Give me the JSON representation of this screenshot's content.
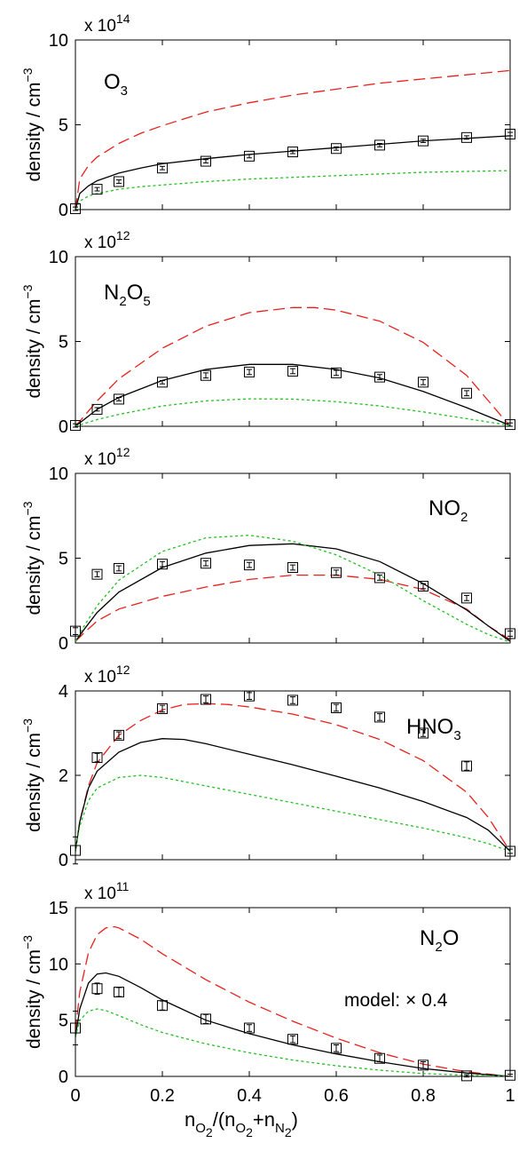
{
  "chart_data": [
    {
      "type": "line",
      "species": {
        "base": "O",
        "sub": "3",
        "tail_base": "",
        "tail_sub": ""
      },
      "exponent": {
        "prefix": "x 10",
        "power": "14"
      },
      "ylabel": {
        "main": "density / cm",
        "power": "−3"
      },
      "ylim": [
        0,
        10
      ],
      "yticks": [
        0,
        5,
        10
      ],
      "xlim": [
        0,
        1
      ],
      "series": [
        {
          "style": "dashed",
          "color": "#e8201c",
          "x": [
            0,
            0.01,
            0.03,
            0.05,
            0.1,
            0.15,
            0.2,
            0.3,
            0.4,
            0.5,
            0.6,
            0.7,
            0.8,
            0.9,
            1.0
          ],
          "y": [
            0,
            1.8,
            2.6,
            3.1,
            3.9,
            4.5,
            4.95,
            5.75,
            6.3,
            6.75,
            7.1,
            7.45,
            7.7,
            7.95,
            8.2
          ]
        },
        {
          "style": "solid",
          "color": "#000000",
          "x": [
            0,
            0.01,
            0.03,
            0.05,
            0.1,
            0.15,
            0.2,
            0.3,
            0.4,
            0.5,
            0.6,
            0.7,
            0.8,
            0.9,
            1.0
          ],
          "y": [
            0,
            0.95,
            1.4,
            1.7,
            2.15,
            2.45,
            2.7,
            3.0,
            3.25,
            3.45,
            3.65,
            3.85,
            4.05,
            4.2,
            4.35
          ]
        },
        {
          "style": "dotted",
          "color": "#22c022",
          "x": [
            0,
            0.01,
            0.03,
            0.05,
            0.1,
            0.15,
            0.2,
            0.3,
            0.4,
            0.5,
            0.6,
            0.7,
            0.8,
            0.9,
            1.0
          ],
          "y": [
            0,
            0.5,
            0.8,
            0.95,
            1.2,
            1.35,
            1.45,
            1.65,
            1.8,
            1.9,
            2.0,
            2.1,
            2.2,
            2.25,
            2.3
          ]
        }
      ],
      "measurements": {
        "x": [
          0,
          0.05,
          0.1,
          0.2,
          0.3,
          0.4,
          0.5,
          0.6,
          0.7,
          0.8,
          0.9,
          1.0
        ],
        "y": [
          0.05,
          1.2,
          1.65,
          2.45,
          2.85,
          3.15,
          3.4,
          3.6,
          3.8,
          4.05,
          4.25,
          4.45
        ],
        "err": [
          0.1,
          0.1,
          0.1,
          0.1,
          0.1,
          0.1,
          0.1,
          0.1,
          0.1,
          0.1,
          0.1,
          0.1
        ]
      }
    },
    {
      "type": "line",
      "species": {
        "base": "N",
        "sub": "2",
        "tail_base": "O",
        "tail_sub": "5"
      },
      "exponent": {
        "prefix": "x 10",
        "power": "12"
      },
      "ylabel": {
        "main": "density / cm",
        "power": "−3"
      },
      "ylim": [
        0,
        10
      ],
      "yticks": [
        0,
        5,
        10
      ],
      "xlim": [
        0,
        1
      ],
      "series": [
        {
          "style": "dashed",
          "color": "#e8201c",
          "x": [
            0,
            0.05,
            0.1,
            0.2,
            0.3,
            0.4,
            0.5,
            0.55,
            0.6,
            0.7,
            0.8,
            0.9,
            1.0
          ],
          "y": [
            0,
            1.5,
            2.8,
            4.6,
            5.9,
            6.7,
            7.0,
            7.0,
            6.85,
            6.2,
            4.95,
            3.0,
            0.0
          ]
        },
        {
          "style": "solid",
          "color": "#000000",
          "x": [
            0,
            0.05,
            0.1,
            0.2,
            0.3,
            0.4,
            0.5,
            0.6,
            0.7,
            0.8,
            0.9,
            1.0
          ],
          "y": [
            0,
            1.0,
            1.7,
            2.7,
            3.35,
            3.65,
            3.65,
            3.35,
            2.85,
            2.05,
            1.1,
            0.05
          ]
        },
        {
          "style": "dotted",
          "color": "#22c022",
          "x": [
            0,
            0.05,
            0.1,
            0.2,
            0.3,
            0.4,
            0.5,
            0.6,
            0.7,
            0.8,
            0.9,
            1.0
          ],
          "y": [
            0,
            0.4,
            0.7,
            1.2,
            1.5,
            1.62,
            1.6,
            1.45,
            1.2,
            0.85,
            0.45,
            0.05
          ]
        }
      ],
      "measurements": {
        "x": [
          0,
          0.05,
          0.1,
          0.2,
          0.3,
          0.4,
          0.5,
          0.6,
          0.7,
          0.8,
          0.9,
          1.0
        ],
        "y": [
          0.05,
          1.0,
          1.6,
          2.6,
          3.0,
          3.2,
          3.25,
          3.15,
          2.9,
          2.6,
          1.95,
          0.1
        ],
        "err": [
          0.1,
          0.1,
          0.1,
          0.1,
          0.15,
          0.15,
          0.15,
          0.15,
          0.15,
          0.15,
          0.15,
          0.1
        ]
      }
    },
    {
      "type": "line",
      "species": {
        "base": "NO",
        "sub": "2",
        "tail_base": "",
        "tail_sub": ""
      },
      "exponent": {
        "prefix": "x 10",
        "power": "12"
      },
      "ylabel": {
        "main": "density / cm",
        "power": "−3"
      },
      "ylim": [
        0,
        10
      ],
      "yticks": [
        0,
        5,
        10
      ],
      "xlim": [
        0,
        1
      ],
      "series": [
        {
          "style": "dashed",
          "color": "#e8201c",
          "x": [
            0,
            0.02,
            0.05,
            0.1,
            0.2,
            0.3,
            0.4,
            0.5,
            0.6,
            0.7,
            0.8,
            0.9,
            0.95,
            1.0
          ],
          "y": [
            0.1,
            0.6,
            1.3,
            2.0,
            2.75,
            3.3,
            3.75,
            4.0,
            4.0,
            3.75,
            3.15,
            2.0,
            1.0,
            0.2
          ]
        },
        {
          "style": "solid",
          "color": "#000000",
          "x": [
            0,
            0.02,
            0.05,
            0.1,
            0.2,
            0.3,
            0.4,
            0.5,
            0.6,
            0.7,
            0.8,
            0.9,
            0.95,
            1.0
          ],
          "y": [
            0.1,
            0.8,
            1.8,
            3.0,
            4.45,
            5.3,
            5.75,
            5.85,
            5.55,
            4.8,
            3.5,
            1.95,
            1.0,
            0.1
          ]
        },
        {
          "style": "dotted",
          "color": "#22c022",
          "x": [
            0,
            0.02,
            0.05,
            0.1,
            0.2,
            0.3,
            0.4,
            0.5,
            0.6,
            0.7,
            0.8,
            0.9,
            0.95,
            1.0
          ],
          "y": [
            0.1,
            1.0,
            2.2,
            3.7,
            5.4,
            6.2,
            6.35,
            6.0,
            5.2,
            4.0,
            2.5,
            1.1,
            0.5,
            0.05
          ]
        }
      ],
      "measurements": {
        "x": [
          0,
          0.05,
          0.1,
          0.2,
          0.3,
          0.4,
          0.5,
          0.6,
          0.7,
          0.8,
          0.9,
          1.0
        ],
        "y": [
          0.7,
          4.05,
          4.4,
          4.65,
          4.7,
          4.6,
          4.45,
          4.15,
          3.85,
          3.35,
          2.65,
          0.55
        ],
        "err": [
          0.2,
          0.15,
          0.15,
          0.15,
          0.15,
          0.15,
          0.15,
          0.15,
          0.15,
          0.15,
          0.15,
          0.15
        ]
      }
    },
    {
      "type": "line",
      "species": {
        "base": "HNO",
        "sub": "3",
        "tail_base": "",
        "tail_sub": ""
      },
      "exponent": {
        "prefix": "x 10",
        "power": "12"
      },
      "ylabel": {
        "main": "density / cm",
        "power": "−3"
      },
      "ylim": [
        0,
        4
      ],
      "yticks": [
        0,
        2,
        4
      ],
      "xlim": [
        0,
        1
      ],
      "series": [
        {
          "style": "dashed",
          "color": "#e8201c",
          "x": [
            0,
            0.01,
            0.03,
            0.05,
            0.1,
            0.15,
            0.2,
            0.25,
            0.3,
            0.35,
            0.4,
            0.5,
            0.6,
            0.7,
            0.8,
            0.9,
            0.95,
            1.0
          ],
          "y": [
            0.2,
            0.9,
            1.75,
            2.3,
            2.95,
            3.3,
            3.55,
            3.68,
            3.7,
            3.68,
            3.62,
            3.45,
            3.2,
            2.85,
            2.35,
            1.6,
            1.0,
            0.2
          ]
        },
        {
          "style": "solid",
          "color": "#000000",
          "x": [
            0,
            0.01,
            0.03,
            0.05,
            0.1,
            0.15,
            0.2,
            0.25,
            0.3,
            0.4,
            0.5,
            0.6,
            0.7,
            0.8,
            0.9,
            0.95,
            1.0
          ],
          "y": [
            0.2,
            0.9,
            1.7,
            2.1,
            2.55,
            2.78,
            2.87,
            2.85,
            2.75,
            2.5,
            2.25,
            1.98,
            1.7,
            1.38,
            1.0,
            0.7,
            0.2
          ]
        },
        {
          "style": "dotted",
          "color": "#22c022",
          "x": [
            0,
            0.01,
            0.03,
            0.05,
            0.1,
            0.15,
            0.2,
            0.3,
            0.4,
            0.5,
            0.6,
            0.7,
            0.8,
            0.9,
            0.95,
            1.0
          ],
          "y": [
            0.2,
            0.8,
            1.4,
            1.7,
            1.95,
            2.0,
            1.95,
            1.75,
            1.55,
            1.35,
            1.15,
            0.95,
            0.75,
            0.52,
            0.38,
            0.2
          ]
        }
      ],
      "measurements": {
        "x": [
          0,
          0.05,
          0.1,
          0.2,
          0.3,
          0.4,
          0.5,
          0.6,
          0.7,
          0.8,
          0.9,
          1.0
        ],
        "y": [
          0.22,
          2.42,
          2.95,
          3.58,
          3.8,
          3.88,
          3.78,
          3.6,
          3.38,
          3.0,
          2.22,
          0.2
        ],
        "err": [
          0.32,
          0.1,
          0.08,
          0.08,
          0.08,
          0.08,
          0.08,
          0.08,
          0.08,
          0.08,
          0.1,
          0.05
        ]
      }
    },
    {
      "type": "line",
      "species": {
        "base": "N",
        "sub": "2",
        "tail_base": "O",
        "tail_sub": ""
      },
      "exponent": {
        "prefix": "x 10",
        "power": "11"
      },
      "ylabel": {
        "main": "density / cm",
        "power": "−3"
      },
      "annotation": {
        "text": "model:",
        "sym": "×",
        "value": "0.4"
      },
      "ylim": [
        0,
        15
      ],
      "yticks": [
        0,
        5,
        10,
        15
      ],
      "xlim": [
        0,
        1
      ],
      "xticks": [
        0,
        0.2,
        0.4,
        0.6,
        0.8,
        1
      ],
      "xticklabels": [
        "0",
        "0.2",
        "0.4",
        "0.6",
        "0.8",
        "1"
      ],
      "xlabel": {
        "n": "n",
        "o2": "O",
        "two": "2",
        "mid": "/(n",
        "plus": "+n",
        "n2": "N",
        "close": ")"
      },
      "series": [
        {
          "style": "dashed",
          "color": "#e8201c",
          "x": [
            0,
            0.01,
            0.03,
            0.05,
            0.07,
            0.09,
            0.1,
            0.15,
            0.2,
            0.3,
            0.4,
            0.5,
            0.6,
            0.7,
            0.8,
            0.9,
            1.0
          ],
          "y": [
            4.0,
            7.5,
            11.0,
            12.6,
            13.2,
            13.3,
            13.2,
            12.2,
            10.9,
            8.6,
            6.6,
            4.9,
            3.4,
            2.1,
            1.1,
            0.4,
            0.0
          ]
        },
        {
          "style": "solid",
          "color": "#000000",
          "x": [
            0,
            0.01,
            0.03,
            0.05,
            0.07,
            0.1,
            0.15,
            0.2,
            0.3,
            0.4,
            0.5,
            0.6,
            0.7,
            0.8,
            0.9,
            1.0
          ],
          "y": [
            3.5,
            6.0,
            8.3,
            9.1,
            9.2,
            8.9,
            7.9,
            6.8,
            5.0,
            3.8,
            2.8,
            2.0,
            1.3,
            0.7,
            0.3,
            0.0
          ]
        },
        {
          "style": "dotted",
          "color": "#22c022",
          "x": [
            0,
            0.01,
            0.03,
            0.05,
            0.07,
            0.1,
            0.15,
            0.2,
            0.3,
            0.4,
            0.5,
            0.6,
            0.7,
            0.8,
            0.9,
            1.0
          ],
          "y": [
            3.5,
            5.0,
            5.8,
            6.0,
            5.85,
            5.4,
            4.6,
            3.9,
            2.9,
            2.1,
            1.45,
            0.95,
            0.55,
            0.25,
            0.1,
            0.0
          ]
        }
      ],
      "measurements": {
        "x": [
          0,
          0.05,
          0.1,
          0.2,
          0.3,
          0.4,
          0.5,
          0.6,
          0.7,
          0.8,
          0.9,
          1.0
        ],
        "y": [
          4.3,
          7.8,
          7.5,
          6.3,
          5.1,
          4.3,
          3.3,
          2.5,
          1.6,
          1.0,
          0.05,
          0.1
        ],
        "err": [
          1.5,
          0.5,
          0.4,
          0.4,
          0.4,
          0.3,
          0.3,
          0.3,
          0.3,
          0.3,
          0.1,
          0.1
        ]
      }
    }
  ]
}
